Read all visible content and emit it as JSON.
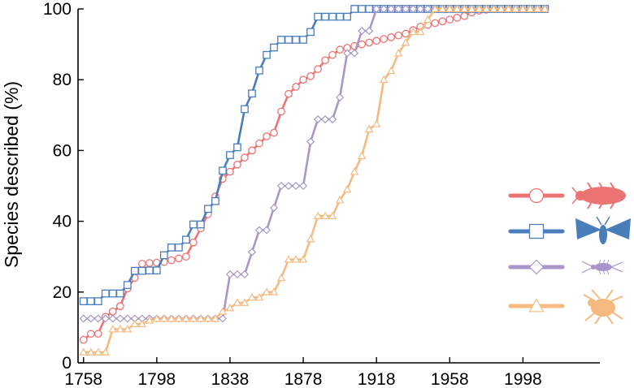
{
  "chart_data": {
    "type": "line",
    "title": "",
    "xlabel": "",
    "ylabel": "Species described (%)",
    "xlim": [
      1755,
      2040
    ],
    "ylim": [
      0,
      100
    ],
    "xticks": [
      1758,
      1798,
      1838,
      1878,
      1918,
      1958,
      1998
    ],
    "xtick_labels": [
      "1758",
      "1798",
      "1838",
      "1878",
      "1918",
      "1958",
      "1998"
    ],
    "yticks": [
      0,
      20,
      40,
      60,
      80,
      100
    ],
    "ytick_labels": [
      "0",
      "20",
      "40",
      "60",
      "80",
      "100"
    ],
    "legend_position": "right",
    "series": [
      {
        "name": "beetle",
        "icon": "beetle-icon",
        "color": "#EC7373",
        "marker": "circle",
        "x": [
          1758,
          1762,
          1766,
          1770,
          1774,
          1778,
          1782,
          1786,
          1790,
          1794,
          1798,
          1802,
          1806,
          1810,
          1814,
          1818,
          1822,
          1826,
          1830,
          1834,
          1838,
          1842,
          1846,
          1850,
          1854,
          1858,
          1862,
          1866,
          1870,
          1874,
          1878,
          1882,
          1886,
          1890,
          1894,
          1898,
          1902,
          1906,
          1910,
          1914,
          1918,
          1922,
          1926,
          1930,
          1934,
          1938,
          1942,
          1946,
          1950,
          1954,
          1958,
          1962,
          1966,
          1970,
          1974,
          1978,
          1982,
          1986,
          1990,
          1994,
          1998,
          2002,
          2006,
          2010
        ],
        "y": [
          6.5,
          8.2,
          8.2,
          13,
          14.5,
          16,
          21,
          24,
          28,
          28.2,
          28.3,
          28.5,
          29,
          29.5,
          30,
          34,
          38,
          42,
          47,
          52,
          54,
          56,
          58,
          60,
          62,
          64,
          65,
          71,
          76,
          78,
          80,
          81,
          83,
          85.5,
          87,
          88.5,
          89,
          89.5,
          90,
          90.5,
          91,
          91.5,
          92,
          92.5,
          93,
          94,
          95,
          95.5,
          96,
          96.5,
          97,
          97.5,
          98,
          99,
          99.5,
          99.8,
          100,
          100,
          100,
          100,
          100,
          100,
          100,
          100
        ]
      },
      {
        "name": "moth",
        "icon": "moth-icon",
        "color": "#4A7EBB",
        "marker": "square",
        "x": [
          1758,
          1762,
          1766,
          1770,
          1774,
          1778,
          1782,
          1786,
          1790,
          1794,
          1798,
          1802,
          1806,
          1810,
          1814,
          1818,
          1822,
          1826,
          1830,
          1834,
          1838,
          1842,
          1846,
          1850,
          1854,
          1858,
          1862,
          1866,
          1870,
          1874,
          1878,
          1882,
          1886,
          1890,
          1894,
          1898,
          1902,
          1906,
          1910,
          1914,
          1918,
          1922,
          1926,
          1930,
          1934,
          1938,
          1942,
          1946,
          1950,
          1954,
          1958,
          1962,
          1966,
          1970,
          1974,
          1978,
          1982,
          1986,
          1990,
          1994,
          1998,
          2002,
          2006,
          2010
        ],
        "y": [
          17.4,
          17.4,
          17.4,
          19.6,
          19.6,
          19.6,
          22,
          26,
          26,
          26.1,
          26.1,
          30.4,
          32.6,
          32.6,
          34.8,
          39.1,
          39.1,
          43.5,
          45.7,
          54.3,
          58.7,
          60.9,
          71.7,
          76.1,
          82.6,
          87,
          89.1,
          91.3,
          91.3,
          91.3,
          91.3,
          93.5,
          97.8,
          97.8,
          97.8,
          97.8,
          97.8,
          100,
          100,
          100,
          100,
          100,
          100,
          100,
          100,
          100,
          100,
          100,
          100,
          100,
          100,
          100,
          100,
          100,
          100,
          100,
          100,
          100,
          100,
          100,
          100,
          100,
          100,
          100
        ]
      },
      {
        "name": "silverfish",
        "icon": "silverfish-icon",
        "color": "#A896C8",
        "marker": "diamond",
        "x": [
          1758,
          1762,
          1766,
          1770,
          1774,
          1778,
          1782,
          1786,
          1790,
          1794,
          1798,
          1802,
          1806,
          1810,
          1814,
          1818,
          1822,
          1826,
          1830,
          1834,
          1838,
          1842,
          1846,
          1850,
          1854,
          1858,
          1862,
          1866,
          1870,
          1874,
          1878,
          1882,
          1886,
          1890,
          1894,
          1898,
          1902,
          1906,
          1910,
          1914,
          1918,
          1922,
          1926,
          1930,
          1934,
          1938,
          1942,
          1946,
          1950,
          1954,
          1958,
          1962,
          1966,
          1970,
          1974,
          1978,
          1982,
          1986,
          1990,
          1994,
          1998,
          2002,
          2006,
          2010
        ],
        "y": [
          12.5,
          12.5,
          12.5,
          12.5,
          12.5,
          12.5,
          12.5,
          12.5,
          12.5,
          12.5,
          12.5,
          12.5,
          12.5,
          12.5,
          12.5,
          12.5,
          12.5,
          12.5,
          12.5,
          12.5,
          25,
          25,
          25,
          31.3,
          37.5,
          37.5,
          43.8,
          50,
          50,
          50,
          50,
          62.5,
          68.8,
          68.8,
          68.8,
          75,
          87.5,
          87.5,
          93.8,
          93.8,
          100,
          100,
          100,
          100,
          100,
          100,
          100,
          100,
          100,
          100,
          100,
          100,
          100,
          100,
          100,
          100,
          100,
          100,
          100,
          100,
          100,
          100,
          100,
          100
        ]
      },
      {
        "name": "mite",
        "icon": "mite-icon",
        "color": "#F5BA80",
        "marker": "triangle",
        "x": [
          1758,
          1762,
          1766,
          1770,
          1774,
          1778,
          1782,
          1786,
          1790,
          1794,
          1798,
          1802,
          1806,
          1810,
          1814,
          1818,
          1822,
          1826,
          1830,
          1834,
          1838,
          1842,
          1846,
          1850,
          1854,
          1858,
          1862,
          1866,
          1870,
          1874,
          1878,
          1882,
          1886,
          1890,
          1894,
          1898,
          1902,
          1906,
          1910,
          1914,
          1918,
          1922,
          1926,
          1930,
          1934,
          1938,
          1942,
          1946,
          1950,
          1954,
          1958,
          1962,
          1966,
          1970,
          1974,
          1978,
          1982,
          1986,
          1990,
          1994,
          1998,
          2002,
          2006,
          2010
        ],
        "y": [
          3,
          3,
          3,
          3,
          9.5,
          9.5,
          9.5,
          11,
          11,
          12,
          12.5,
          12.5,
          12.5,
          12.5,
          12.5,
          12.5,
          12.5,
          12.5,
          12.5,
          14.5,
          15.5,
          17,
          17,
          18.5,
          18.5,
          20,
          20,
          24,
          29.2,
          29.2,
          29.2,
          35,
          41.5,
          41.5,
          41.5,
          46,
          49,
          54,
          58.5,
          66,
          67.5,
          80,
          82.5,
          87.5,
          90.5,
          93.5,
          93.5,
          97,
          100,
          100,
          100,
          100,
          100,
          100,
          100,
          100,
          100,
          100,
          100,
          100,
          100,
          100,
          100,
          100
        ]
      }
    ]
  }
}
